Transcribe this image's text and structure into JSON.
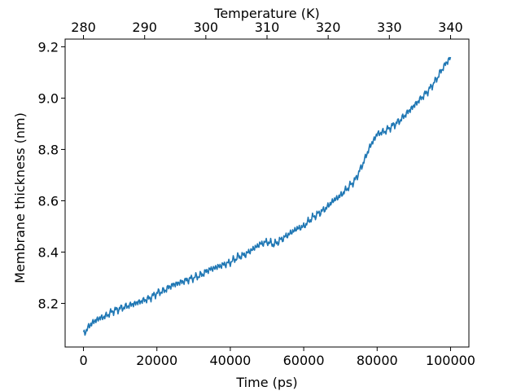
{
  "chart_data": {
    "type": "line",
    "xlabel": "Time (ps)",
    "ylabel": "Membrane thickness (nm)",
    "x2label": "Temperature (K)",
    "xlim": [
      -5000,
      105000
    ],
    "ylim": [
      8.03,
      9.23
    ],
    "x_ticks": [
      0,
      20000,
      40000,
      60000,
      80000,
      100000
    ],
    "y_ticks": [
      8.2,
      8.4,
      8.6,
      8.8,
      9.0,
      9.2
    ],
    "x2_ticks": [
      280,
      290,
      300,
      310,
      320,
      330,
      340
    ],
    "x2_range": [
      280,
      340
    ],
    "grid": false,
    "series_color": "#1f77b4",
    "series": [
      {
        "x": [
          0,
          2000,
          4000,
          6000,
          8000,
          10000,
          12000,
          14000,
          16000,
          18000,
          20000,
          22000,
          24000,
          26000,
          28000,
          30000,
          32000,
          34000,
          36000,
          38000,
          40000,
          42000,
          44000,
          46000,
          48000,
          50000,
          52000,
          54000,
          56000,
          58000,
          60000,
          62000,
          64000,
          66000,
          68000,
          70000,
          72000,
          74000,
          76000,
          78000,
          80000,
          82000,
          84000,
          86000,
          88000,
          90000,
          92000,
          94000,
          96000,
          98000,
          100000
        ],
        "y": [
          8.08,
          8.12,
          8.14,
          8.15,
          8.17,
          8.18,
          8.19,
          8.2,
          8.21,
          8.22,
          8.24,
          8.25,
          8.27,
          8.28,
          8.29,
          8.3,
          8.31,
          8.33,
          8.34,
          8.35,
          8.36,
          8.38,
          8.39,
          8.41,
          8.43,
          8.44,
          8.43,
          8.45,
          8.47,
          8.49,
          8.5,
          8.53,
          8.55,
          8.57,
          8.6,
          8.62,
          8.65,
          8.68,
          8.74,
          8.81,
          8.86,
          8.87,
          8.89,
          8.91,
          8.94,
          8.97,
          9.0,
          9.03,
          9.07,
          9.12,
          9.16
        ]
      }
    ]
  }
}
